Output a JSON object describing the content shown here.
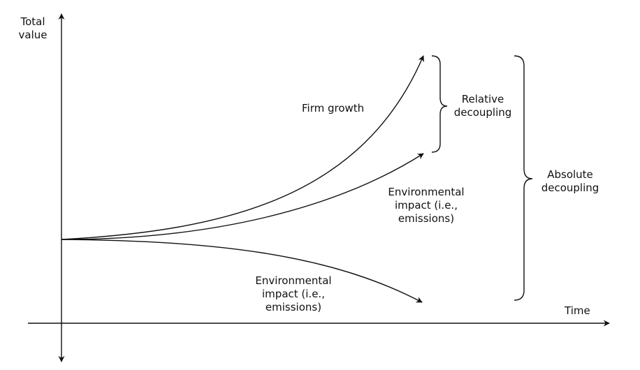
{
  "axes": {
    "y_label_line1": "Total",
    "y_label_line2": "value",
    "x_label": "Time"
  },
  "curves": {
    "firm_growth": "Firm growth",
    "env_impact_upper": {
      "line1": "Environmental",
      "line2": "impact (i.e.,",
      "line3": "emissions)"
    },
    "env_impact_lower": {
      "line1": "Environmental",
      "line2": "impact (i.e.,",
      "line3": "emissions)"
    }
  },
  "braces": {
    "relative": {
      "line1": "Relative",
      "line2": "decoupling"
    },
    "absolute": {
      "line1": "Absolute",
      "line2": "decoupling"
    }
  },
  "colors": {
    "ink": "#111111",
    "background": "#ffffff"
  }
}
